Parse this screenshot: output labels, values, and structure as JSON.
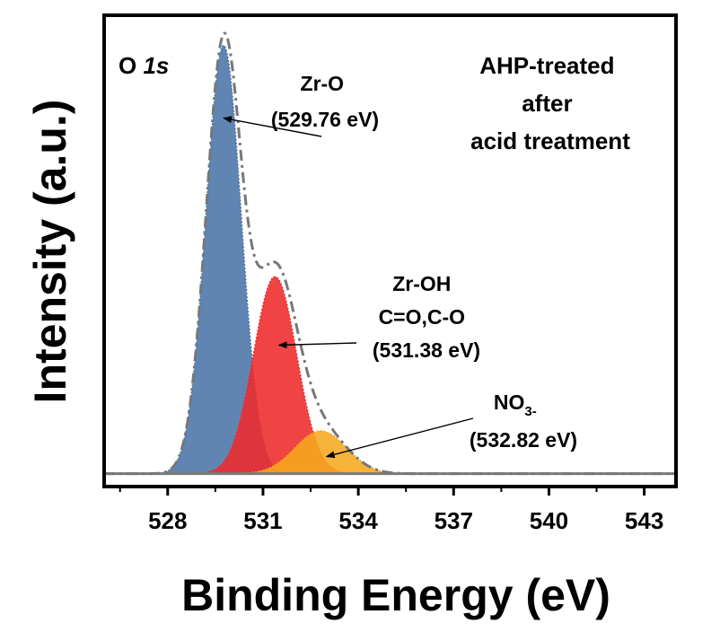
{
  "chart_data": {
    "type": "area",
    "title": "",
    "xlabel": "Binding Energy (eV)",
    "ylabel": "Intensity (a.u.)",
    "xlim": [
      526,
      544
    ],
    "ylim": [
      -0.03,
      1.07
    ],
    "x_ticks": [
      528,
      531,
      534,
      537,
      540,
      543
    ],
    "x_tick_labels": [
      "528",
      "531",
      "534",
      "537",
      "540",
      "543"
    ],
    "y_ticks_shown": false,
    "grid": false,
    "panel_label": {
      "prefix": "O ",
      "italic": "1s"
    },
    "sample_label": [
      "AHP-treated",
      "after",
      "acid treatment"
    ],
    "series": [
      {
        "role": "envelope",
        "style": "dash-dot",
        "color": "#777777",
        "peaks": [
          {
            "center": 529.76,
            "height": 1.0,
            "fwhm": 1.3
          },
          {
            "center": 531.38,
            "height": 0.46,
            "fwhm": 1.6
          },
          {
            "center": 532.82,
            "height": 0.1,
            "fwhm": 1.9
          }
        ]
      },
      {
        "role": "component",
        "name": "Zr-O",
        "center": 529.76,
        "height": 1.0,
        "fwhm": 1.3,
        "color": "#4a74a8"
      },
      {
        "role": "component",
        "name": "Zr-OH C=O,C-O",
        "center": 531.38,
        "height": 0.46,
        "fwhm": 1.6,
        "color": "#ee2a2a"
      },
      {
        "role": "component",
        "name": "NO3-",
        "center": 532.82,
        "height": 0.1,
        "fwhm": 1.9,
        "color": "#f6a81e"
      }
    ],
    "annotations": [
      {
        "lines": [
          "Zr-O",
          "(529.76 eV)"
        ],
        "target": [
          529.76,
          0.83
        ]
      },
      {
        "lines": [
          "Zr-OH",
          "C=O,C-O",
          "(531.38 eV)"
        ],
        "target": [
          531.5,
          0.3
        ]
      },
      {
        "lines": [
          "NO",
          "(532.82 eV)"
        ],
        "sub": "3-",
        "target": [
          533.0,
          0.04
        ]
      }
    ],
    "colors": {
      "frame": "#000000",
      "baseline": "#7a7a7a"
    }
  }
}
